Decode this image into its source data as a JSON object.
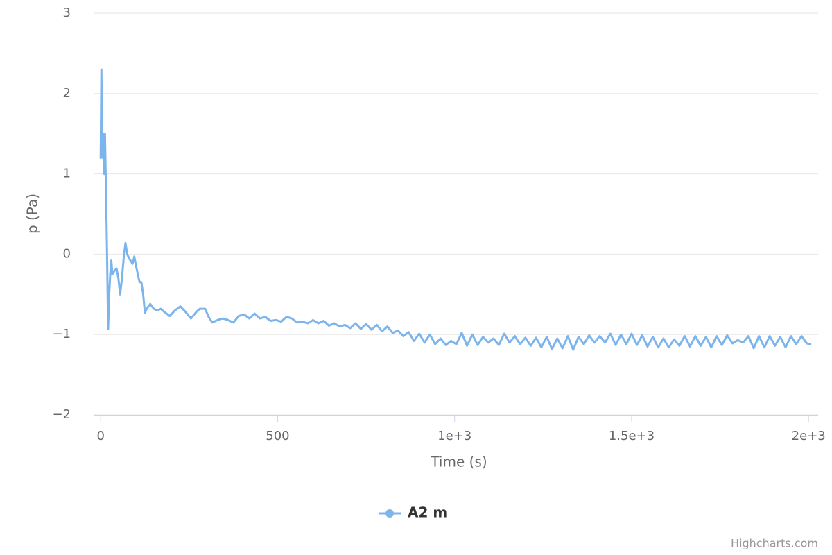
{
  "chart_data": {
    "type": "line",
    "x_label": "Time (s)",
    "y_label": "p (Pa)",
    "credits": "Highcharts.com",
    "xlim": [
      -20,
      2027
    ],
    "ylim": [
      -2,
      3
    ],
    "xticks": [
      0,
      500,
      {
        "value": 1000,
        "label": "1e+3"
      },
      {
        "value": 1500,
        "label": "1.5e+3"
      },
      {
        "value": 2000,
        "label": "2e+3"
      }
    ],
    "yticks": [
      {
        "value": -2,
        "label": "−2"
      },
      {
        "value": -1,
        "label": "−1"
      },
      0,
      1,
      2,
      3
    ],
    "grid": true,
    "legend": "bottom",
    "x": [
      0,
      2,
      4,
      6,
      8,
      10,
      12,
      15,
      18,
      21,
      24,
      27,
      30,
      33,
      40,
      45,
      50,
      55,
      60,
      65,
      70,
      75,
      80,
      90,
      95,
      100,
      110,
      115,
      120,
      125,
      130,
      140,
      150,
      160,
      170,
      180,
      195,
      210,
      225,
      240,
      255,
      270,
      280,
      295,
      305,
      315,
      330,
      345,
      360,
      375,
      390,
      405,
      420,
      435,
      450,
      465,
      480,
      495,
      510,
      525,
      540,
      555,
      570,
      585,
      600,
      615,
      630,
      645,
      660,
      675,
      690,
      705,
      720,
      735,
      750,
      765,
      780,
      795,
      810,
      825,
      840,
      855,
      870,
      885,
      900,
      915,
      930,
      945,
      960,
      975,
      990,
      1005,
      1020,
      1035,
      1050,
      1065,
      1080,
      1095,
      1110,
      1125,
      1140,
      1155,
      1170,
      1185,
      1200,
      1215,
      1230,
      1245,
      1260,
      1275,
      1290,
      1305,
      1320,
      1335,
      1350,
      1365,
      1380,
      1395,
      1410,
      1425,
      1440,
      1455,
      1470,
      1485,
      1500,
      1515,
      1530,
      1545,
      1560,
      1575,
      1590,
      1605,
      1620,
      1635,
      1650,
      1665,
      1680,
      1695,
      1710,
      1725,
      1740,
      1755,
      1770,
      1785,
      1800,
      1815,
      1830,
      1845,
      1860,
      1875,
      1890,
      1905,
      1920,
      1935,
      1950,
      1965,
      1980,
      1995,
      2005
    ],
    "series": [
      {
        "name": "A2 m",
        "color": "#7cb5ec",
        "values": [
          1.2,
          2.3,
          1.6,
          1.2,
          1.5,
          1.0,
          1.5,
          0.8,
          0,
          -0.93,
          -0.5,
          -0.25,
          -0.08,
          -0.25,
          -0.2,
          -0.18,
          -0.3,
          -0.5,
          -0.3,
          -0.05,
          0.14,
          0.0,
          -0.05,
          -0.12,
          -0.03,
          -0.15,
          -0.35,
          -0.35,
          -0.5,
          -0.73,
          -0.68,
          -0.62,
          -0.68,
          -0.7,
          -0.68,
          -0.72,
          -0.77,
          -0.7,
          -0.65,
          -0.72,
          -0.8,
          -0.72,
          -0.68,
          -0.68,
          -0.78,
          -0.85,
          -0.82,
          -0.8,
          -0.82,
          -0.85,
          -0.77,
          -0.75,
          -0.8,
          -0.74,
          -0.8,
          -0.78,
          -0.83,
          -0.82,
          -0.84,
          -0.78,
          -0.8,
          -0.85,
          -0.84,
          -0.86,
          -0.82,
          -0.86,
          -0.83,
          -0.89,
          -0.86,
          -0.9,
          -0.88,
          -0.92,
          -0.86,
          -0.93,
          -0.87,
          -0.94,
          -0.88,
          -0.96,
          -0.9,
          -0.98,
          -0.95,
          -1.02,
          -0.97,
          -1.08,
          -0.99,
          -1.1,
          -1.0,
          -1.12,
          -1.05,
          -1.13,
          -1.08,
          -1.12,
          -0.98,
          -1.14,
          -1.0,
          -1.13,
          -1.03,
          -1.1,
          -1.05,
          -1.13,
          -0.99,
          -1.1,
          -1.02,
          -1.12,
          -1.04,
          -1.14,
          -1.04,
          -1.16,
          -1.03,
          -1.18,
          -1.05,
          -1.17,
          -1.02,
          -1.19,
          -1.03,
          -1.12,
          -1.01,
          -1.1,
          -1.02,
          -1.1,
          -0.99,
          -1.13,
          -1.0,
          -1.12,
          -0.99,
          -1.13,
          -1.01,
          -1.15,
          -1.03,
          -1.16,
          -1.05,
          -1.16,
          -1.06,
          -1.14,
          -1.02,
          -1.15,
          -1.02,
          -1.14,
          -1.03,
          -1.16,
          -1.02,
          -1.13,
          -1.01,
          -1.11,
          -1.07,
          -1.1,
          -1.02,
          -1.17,
          -1.02,
          -1.16,
          -1.02,
          -1.14,
          -1.03,
          -1.16,
          -1.02,
          -1.12,
          -1.02,
          -1.11,
          -1.12
        ]
      }
    ]
  }
}
